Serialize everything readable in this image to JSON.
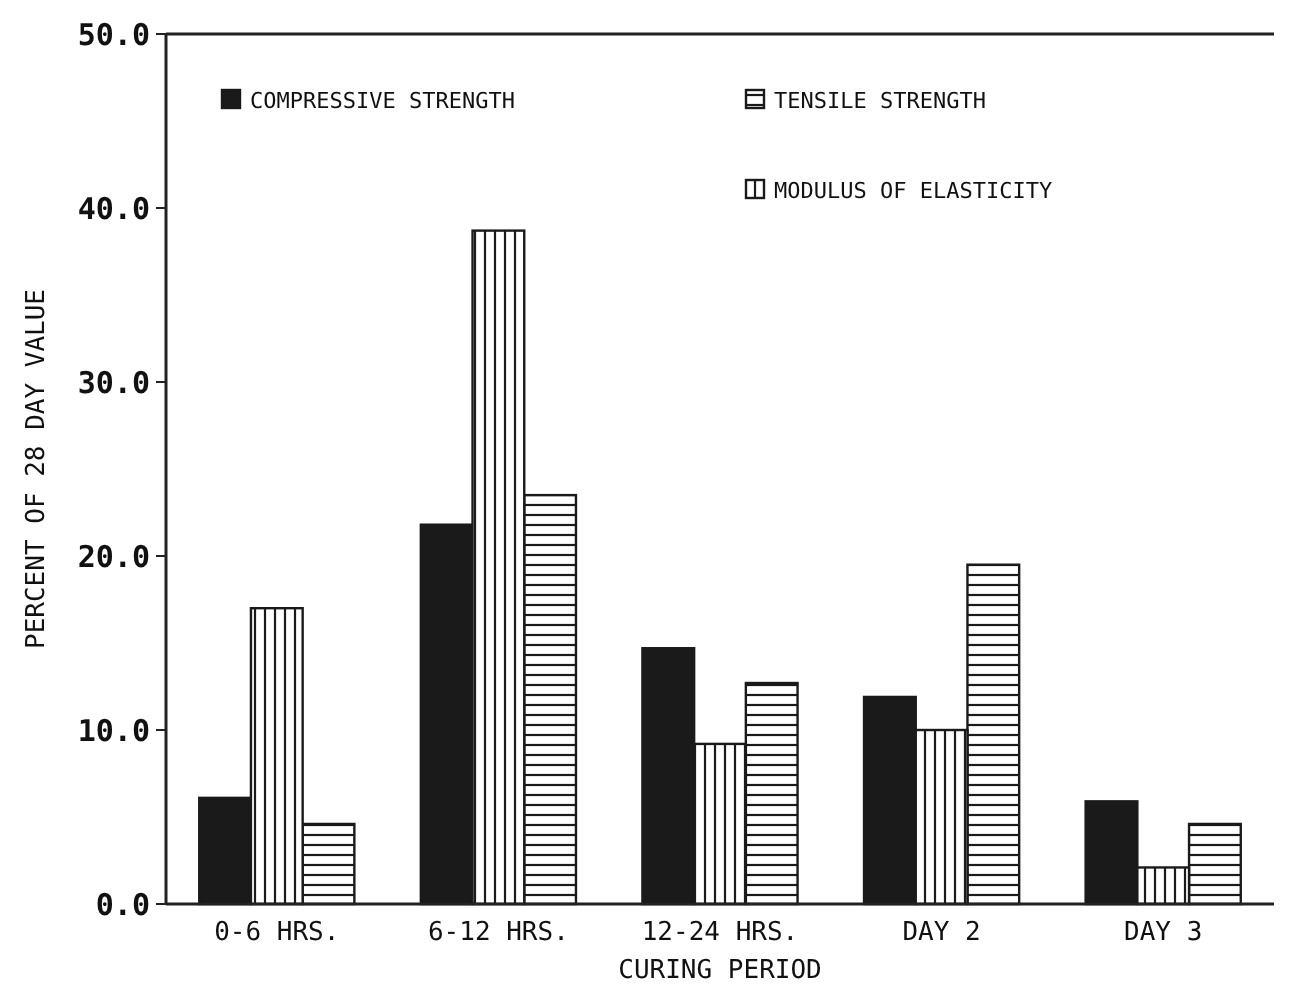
{
  "chart_data": {
    "type": "bar",
    "xlabel": "CURING PERIOD",
    "ylabel": "PERCENT OF 28 DAY VALUE",
    "categories": [
      "0-6 HRS.",
      "6-12 HRS.",
      "12-24 HRS.",
      "DAY 2",
      "DAY 3"
    ],
    "series": [
      {
        "name": "COMPRESSIVE STRENGTH",
        "color": "#1a1a1a",
        "values": [
          6.1,
          21.8,
          14.7,
          11.9,
          5.9
        ]
      },
      {
        "name": "TENSILE STRENGTH",
        "color": "#1a1a1a",
        "values": [
          4.6,
          23.5,
          12.7,
          19.5,
          4.6
        ]
      },
      {
        "name": "MODULUS OF ELASTICITY",
        "color": "#1a1a1a",
        "values": [
          17.0,
          38.7,
          9.2,
          10.0,
          2.1
        ]
      }
    ],
    "ylim": [
      0,
      50
    ],
    "yticks": [
      {
        "value": 0,
        "label": "0.0"
      },
      {
        "value": 10,
        "label": "10.0"
      },
      {
        "value": 20,
        "label": "20.0"
      },
      {
        "value": 30,
        "label": "30.0"
      },
      {
        "value": 40,
        "label": "40.0"
      },
      {
        "value": 50,
        "label": "50.0"
      }
    ],
    "grid": false,
    "legend": "top"
  }
}
